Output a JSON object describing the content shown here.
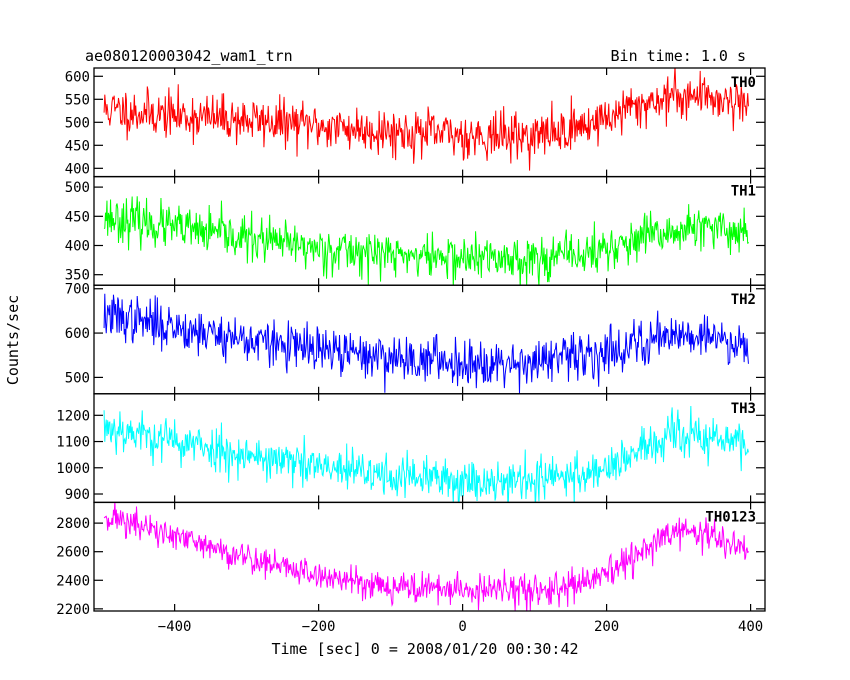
{
  "header": {
    "left_title": "ae080120003042_wam1_trn",
    "right_title": "Bin time: 1.0 s"
  },
  "chart_data": {
    "type": "line",
    "xlabel": "Time [sec] 0 = 2008/01/20 00:30:42",
    "ylabel": "Counts/sec",
    "xlim": [
      -512,
      420
    ],
    "x_ticks": [
      -400,
      -200,
      0,
      200,
      400
    ],
    "x_tick_labels": [
      "−400",
      "−200",
      "0",
      "200",
      "400"
    ],
    "x_data_range": [
      -498,
      397
    ],
    "bin_time_s": 1.0,
    "panels": [
      {
        "name": "TH0",
        "color": "#ff0000",
        "ylim": [
          382,
          618
        ],
        "y_ticks": [
          400,
          450,
          500,
          550,
          600
        ],
        "trend_x": [
          -498,
          -400,
          -300,
          -200,
          -100,
          0,
          100,
          150,
          200,
          250,
          300,
          350,
          397
        ],
        "trend_y": [
          528,
          515,
          505,
          492,
          480,
          472,
          470,
          485,
          510,
          540,
          560,
          555,
          540
        ],
        "noise_sd": 25,
        "seed": 11
      },
      {
        "name": "TH1",
        "color": "#00ff00",
        "ylim": [
          332,
          518
        ],
        "y_ticks": [
          350,
          400,
          450,
          500
        ],
        "trend_x": [
          -498,
          -400,
          -300,
          -200,
          -100,
          0,
          100,
          170,
          220,
          280,
          320,
          397
        ],
        "trend_y": [
          450,
          430,
          412,
          395,
          385,
          378,
          378,
          385,
          400,
          420,
          428,
          425
        ],
        "noise_sd": 19,
        "seed": 23
      },
      {
        "name": "TH2",
        "color": "#0000ff",
        "ylim": [
          463,
          708
        ],
        "y_ticks": [
          500,
          600,
          700
        ],
        "trend_x": [
          -498,
          -400,
          -300,
          -200,
          -100,
          0,
          100,
          170,
          230,
          290,
          330,
          397
        ],
        "trend_y": [
          640,
          615,
          585,
          560,
          545,
          535,
          535,
          548,
          570,
          600,
          595,
          575
        ],
        "noise_sd": 26,
        "seed": 37
      },
      {
        "name": "TH3",
        "color": "#00ffff",
        "ylim": [
          868,
          1282
        ],
        "y_ticks": [
          900,
          1000,
          1100,
          1200
        ],
        "trend_x": [
          -498,
          -400,
          -300,
          -200,
          -100,
          0,
          100,
          170,
          230,
          290,
          330,
          397
        ],
        "trend_y": [
          1160,
          1100,
          1050,
          1000,
          970,
          950,
          955,
          975,
          1040,
          1120,
          1120,
          1090
        ],
        "noise_sd": 42,
        "seed": 53
      },
      {
        "name": "TH0123",
        "color": "#ff00ff",
        "ylim": [
          2185,
          2945
        ],
        "y_ticks": [
          2200,
          2400,
          2600,
          2800
        ],
        "trend_x": [
          -498,
          -400,
          -300,
          -200,
          -100,
          0,
          100,
          150,
          200,
          250,
          300,
          350,
          397
        ],
        "trend_y": [
          2860,
          2700,
          2560,
          2430,
          2360,
          2330,
          2330,
          2350,
          2430,
          2600,
          2760,
          2700,
          2600
        ],
        "noise_sd": 55,
        "seed": 71
      }
    ]
  }
}
